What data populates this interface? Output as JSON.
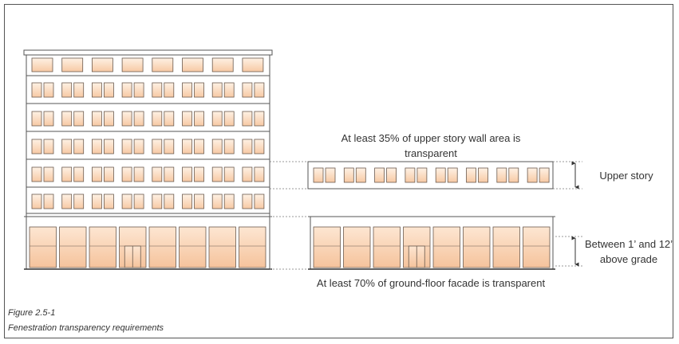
{
  "figure": {
    "number": "Figure 2.5-1",
    "title": "Fenestration transparency requirements"
  },
  "annotations": {
    "upper_note": "At least 35% of upper story wall area is transparent",
    "ground_note": "At least 70% of ground-floor facade is transparent",
    "upper_story_label": "Upper story",
    "ground_floor_label": "Between 1’ and 12’ above grade"
  },
  "colors": {
    "window_fill": "#fbd9bd",
    "window_stroke": "#6b5a4e",
    "line": "#555555"
  }
}
